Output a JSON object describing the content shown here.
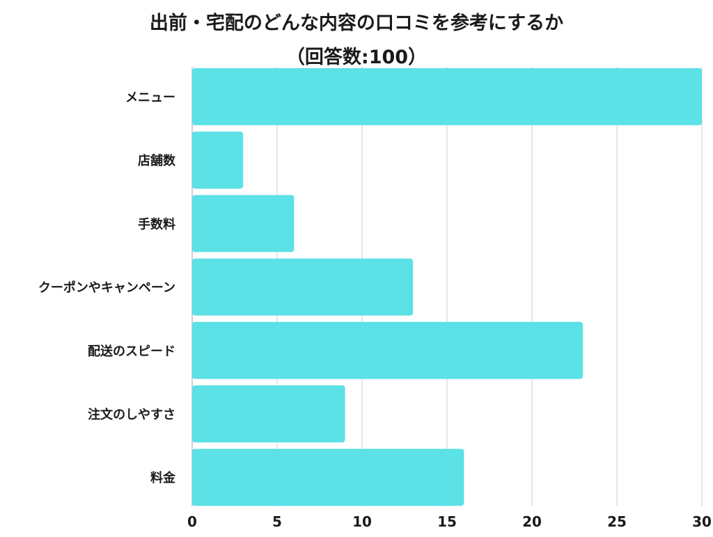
{
  "chart_data": {
    "type": "bar",
    "orientation": "horizontal",
    "title_lines": [
      "出前・宅配のどんな内容の口コミを参考にするか",
      "（回答数:100）"
    ],
    "categories": [
      "メニュー",
      "店舗数",
      "手数料",
      "クーポンやキャンペーン",
      "配送のスピード",
      "注文のしやすさ",
      "料金"
    ],
    "values": [
      30,
      3,
      6,
      13,
      23,
      9,
      16
    ],
    "xlim": [
      0,
      30
    ],
    "ticks": [
      0,
      5,
      10,
      15,
      20,
      25,
      30
    ],
    "tick_labels": [
      "0",
      "5",
      "10",
      "15",
      "20",
      "25",
      "30"
    ],
    "xlabel": "",
    "ylabel": "",
    "grid": true,
    "legend": "none",
    "bar_color": "#5ce1e6",
    "text_color": "#1a1a1a",
    "grid_color": "#d6d6d6"
  }
}
